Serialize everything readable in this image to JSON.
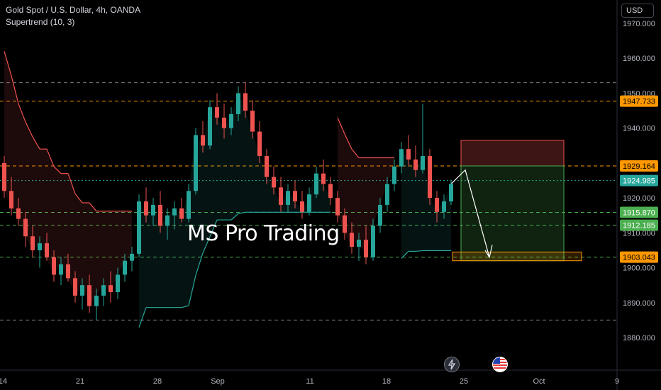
{
  "legend": {
    "symbol_line": "Gold Spot / U.S. Dollar, 4h, OANDA",
    "indicator_line": "Supertrend (10, 3)"
  },
  "currency_button": "USD",
  "watermark": "MS Pro Trading",
  "icons": [
    "flash-event-icon",
    "us-flag-event-icon"
  ],
  "colors": {
    "background": "#000000",
    "bull_candle": "#26a69a",
    "bear_candle": "#ef5350",
    "supertrend_up": "#26a69a",
    "supertrend_down": "#ef5350",
    "level_orange": "#ff9800",
    "level_green": "#4caf50",
    "level_grey": "#787b86"
  },
  "chart_data": {
    "type": "candlestick",
    "title": "Gold Spot / U.S. Dollar, 4h, OANDA",
    "ylim": [
      1878,
      1974
    ],
    "y_ticks": [
      "1970.000",
      "1960.000",
      "1950.000",
      "1940.000",
      "1930.000",
      "1920.000",
      "1910.000",
      "1900.000",
      "1890.000",
      "1880.000"
    ],
    "x_ticks": [
      "14",
      "21",
      "28",
      "Sep",
      "11",
      "18",
      "25",
      "Oct",
      "9"
    ],
    "grid": false,
    "horizontal_levels": [
      {
        "label": "1953.0",
        "value": 1953.0,
        "color": "#787b86",
        "style": "dashed",
        "tag": ""
      },
      {
        "label": "1947.733",
        "value": 1947.733,
        "color": "#ff9800",
        "style": "dashed",
        "tag": "1947.733"
      },
      {
        "label": "1929.164",
        "value": 1929.164,
        "color": "#ff9800",
        "style": "dashed",
        "tag": "1929.164"
      },
      {
        "label": "1924.985",
        "value": 1924.985,
        "color": "#26a69a",
        "style": "dotted",
        "tag": "1924.985"
      },
      {
        "label": "1915.870",
        "value": 1915.87,
        "color": "#4caf50",
        "style": "dashed",
        "tag": "1915.870"
      },
      {
        "label": "1912.185",
        "value": 1912.185,
        "color": "#4caf50",
        "style": "dashed",
        "tag": "1912.185"
      },
      {
        "label": "1903.043",
        "value": 1903.043,
        "color": "#4caf50",
        "style": "dashed",
        "tag": "1903.043"
      },
      {
        "label": "1885.0",
        "value": 1885.0,
        "color": "#787b86",
        "style": "dashed",
        "tag": ""
      }
    ],
    "price_tags": [
      {
        "value": 1947.733,
        "text": "1947.733",
        "bg": "#ff9800",
        "fg": "#000000"
      },
      {
        "value": 1929.164,
        "text": "1929.164",
        "bg": "#ff9800",
        "fg": "#000000"
      },
      {
        "value": 1924.985,
        "text": "1924.985",
        "bg": "#26a69a",
        "fg": "#ffffff"
      },
      {
        "value": 1915.87,
        "text": "1915.870",
        "bg": "#4caf50",
        "fg": "#ffffff"
      },
      {
        "value": 1912.185,
        "text": "1912.185",
        "bg": "#4caf50",
        "fg": "#ffffff"
      },
      {
        "value": 1903.043,
        "text": "1903.043",
        "bg": "#ff9800",
        "fg": "#000000"
      }
    ],
    "candles": [
      [
        1930,
        1932,
        1920,
        1922
      ],
      [
        1922,
        1926,
        1915,
        1917
      ],
      [
        1917,
        1920,
        1912,
        1914
      ],
      [
        1914,
        1916,
        1906,
        1909
      ],
      [
        1909,
        1912,
        1903,
        1905
      ],
      [
        1905,
        1909,
        1900,
        1907
      ],
      [
        1907,
        1910,
        1902,
        1903
      ],
      [
        1903,
        1905,
        1896,
        1898
      ],
      [
        1898,
        1903,
        1895,
        1901
      ],
      [
        1901,
        1904,
        1896,
        1897
      ],
      [
        1897,
        1899,
        1890,
        1892
      ],
      [
        1892,
        1897,
        1888,
        1895
      ],
      [
        1895,
        1898,
        1887,
        1889
      ],
      [
        1889,
        1894,
        1885,
        1892
      ],
      [
        1892,
        1897,
        1889,
        1895
      ],
      [
        1895,
        1899,
        1890,
        1893
      ],
      [
        1893,
        1900,
        1891,
        1898
      ],
      [
        1898,
        1904,
        1896,
        1902
      ],
      [
        1902,
        1906,
        1899,
        1904
      ],
      [
        1904,
        1921,
        1903,
        1919
      ],
      [
        1919,
        1923,
        1913,
        1915
      ],
      [
        1915,
        1920,
        1912,
        1918
      ],
      [
        1918,
        1922,
        1910,
        1912
      ],
      [
        1912,
        1917,
        1908,
        1915
      ],
      [
        1915,
        1919,
        1911,
        1917
      ],
      [
        1917,
        1920,
        1913,
        1914
      ],
      [
        1914,
        1924,
        1913,
        1922
      ],
      [
        1922,
        1940,
        1921,
        1938
      ],
      [
        1938,
        1942,
        1933,
        1935
      ],
      [
        1935,
        1948,
        1934,
        1946
      ],
      [
        1946,
        1950,
        1941,
        1943
      ],
      [
        1943,
        1947,
        1937,
        1940
      ],
      [
        1940,
        1946,
        1938,
        1944
      ],
      [
        1944,
        1952,
        1942,
        1950
      ],
      [
        1950,
        1953,
        1943,
        1945
      ],
      [
        1945,
        1948,
        1937,
        1939
      ],
      [
        1939,
        1942,
        1930,
        1932
      ],
      [
        1932,
        1934,
        1924,
        1926
      ],
      [
        1926,
        1929,
        1921,
        1923
      ],
      [
        1923,
        1926,
        1916,
        1918
      ],
      [
        1918,
        1924,
        1916,
        1922
      ],
      [
        1922,
        1925,
        1917,
        1919
      ],
      [
        1919,
        1922,
        1914,
        1916
      ],
      [
        1916,
        1923,
        1915,
        1921
      ],
      [
        1921,
        1929,
        1920,
        1927
      ],
      [
        1927,
        1931,
        1922,
        1924
      ],
      [
        1924,
        1926,
        1918,
        1920
      ],
      [
        1920,
        1922,
        1913,
        1915
      ],
      [
        1915,
        1917,
        1908,
        1910
      ],
      [
        1910,
        1913,
        1904,
        1906
      ],
      [
        1906,
        1910,
        1902,
        1908
      ],
      [
        1908,
        1912,
        1901,
        1903
      ],
      [
        1903,
        1914,
        1902,
        1912
      ],
      [
        1912,
        1920,
        1910,
        1918
      ],
      [
        1918,
        1926,
        1916,
        1924
      ],
      [
        1924,
        1931,
        1922,
        1929
      ],
      [
        1929,
        1936,
        1927,
        1934
      ],
      [
        1934,
        1938,
        1929,
        1931
      ],
      [
        1931,
        1935,
        1926,
        1928
      ],
      [
        1928,
        1947,
        1927,
        1932
      ],
      [
        1932,
        1934,
        1918,
        1920
      ],
      [
        1920,
        1922,
        1913,
        1916
      ],
      [
        1916,
        1921,
        1914,
        1919
      ],
      [
        1919,
        1925,
        1918,
        1924
      ]
    ]
  },
  "trade_setup": {
    "entry": 1929.164,
    "stop": 1936.5,
    "target": 1902.0,
    "zone_low": 1902.0,
    "zone_high": 1904.5
  }
}
